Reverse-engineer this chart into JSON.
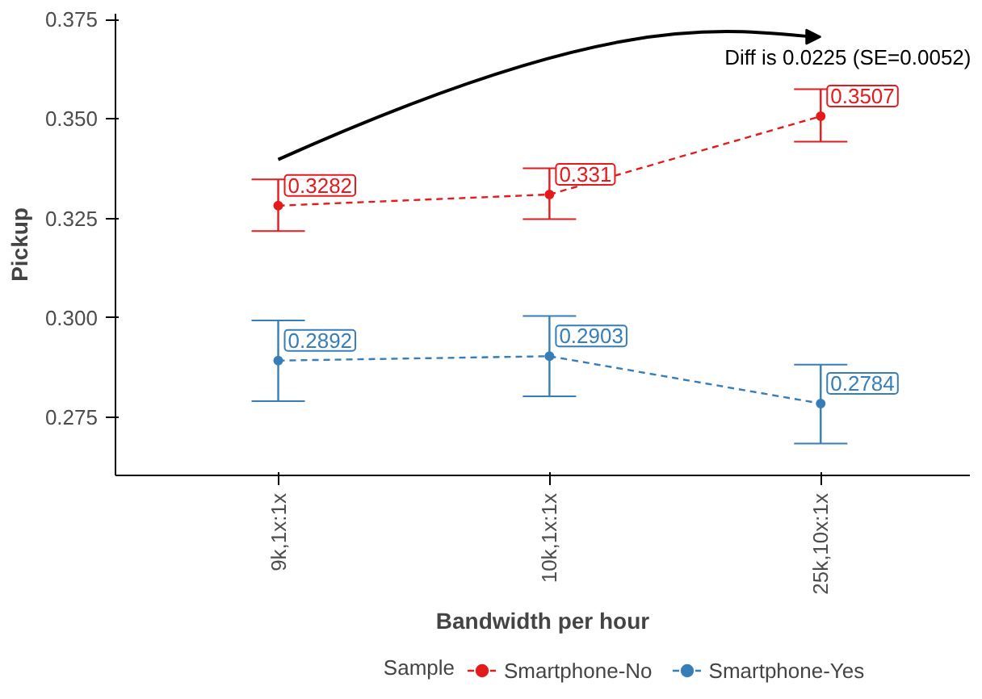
{
  "chart_data": {
    "type": "line",
    "xlabel": "Bandwidth per hour",
    "ylabel": "Pickup",
    "legend_title": "Sample",
    "categories": [
      "9k,1x:1x",
      "10k,1x:1x",
      "25k,10x:1x"
    ],
    "series": [
      {
        "name": "Smartphone-No",
        "color": "#e41a1c",
        "values": [
          0.3282,
          0.331,
          0.3507
        ],
        "errors": [
          [
            0.3218,
            0.3348
          ],
          [
            0.3248,
            0.3376
          ],
          [
            0.3443,
            0.3575
          ]
        ]
      },
      {
        "name": "Smartphone-Yes",
        "color": "#377eb8",
        "values": [
          0.2892,
          0.2903,
          0.2784
        ],
        "errors": [
          [
            0.279,
            0.2993
          ],
          [
            0.2802,
            0.3004
          ],
          [
            0.2683,
            0.2882
          ]
        ]
      }
    ],
    "ylim": [
      0.2603,
      0.3765
    ],
    "yticks": [
      0.275,
      {
        "value": 0.3,
        "label": "0.300"
      },
      0.325,
      {
        "value": 0.35,
        "label": "0.350"
      },
      0.375
    ],
    "annotations": [
      "Diff is 0.0225 (SE=0.0052)"
    ],
    "data_labels": true,
    "marker": "circle",
    "line_style": "dashed",
    "grid": false,
    "legend": "bottom"
  }
}
